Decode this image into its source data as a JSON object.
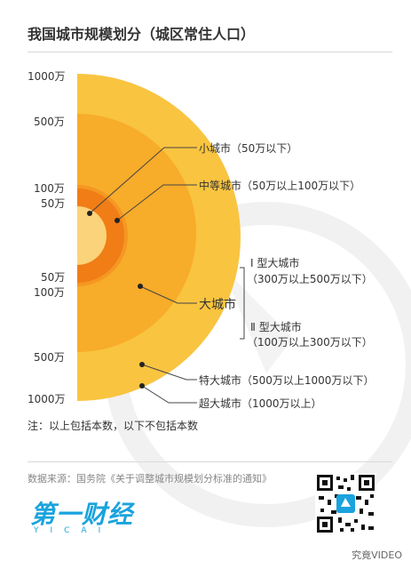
{
  "title": "我国城市规模划分（城区常住人口）",
  "ticks": {
    "t1000_top": "1000万",
    "t500_top": "500万",
    "t100_top": "100万",
    "t50_top": "50万",
    "t50_bot": "50万",
    "t100_bot": "100万",
    "t500_bot": "500万",
    "t1000_bot": "1000万"
  },
  "labels": {
    "small": "小城市（50万以下）",
    "medium": "中等城市（50万以上100万以下）",
    "type1_a": "Ⅰ 型大城市",
    "type1_b": "（300万以上500万以下）",
    "large": "大城市",
    "type2_a": "Ⅱ 型大城市",
    "type2_b": "（100万以上300万以下）",
    "extra_large": "特大城市（500万以上1000万以下）",
    "mega": "超大城市（1000万以上）"
  },
  "note": "注：以上包括本数，以下不包括本数",
  "source": "数据来源：国务院《关于调整城市规模划分标准的通知》",
  "brand": {
    "name": "第一财经",
    "sub": "YICAI"
  },
  "corner": "究竟VIDEO",
  "colors": {
    "ring_outer": "#f9c440",
    "ring_extra": "#f7ac2a",
    "ring_large": "#f59722",
    "ring_medium": "#f07d16",
    "ring_small": "#fbd37a",
    "brand": "#1aa3dd"
  }
}
